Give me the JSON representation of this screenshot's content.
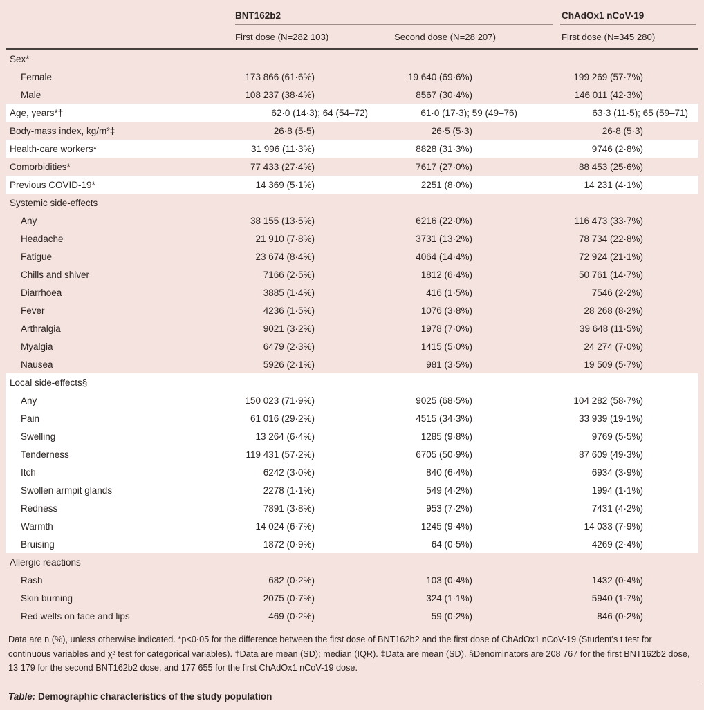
{
  "colors": {
    "page_background": "#f5e3df",
    "row_highlight": "#ffffff",
    "text": "#2b2422",
    "group_rule": "#9a8c84",
    "header_rule": "#45403c"
  },
  "header": {
    "groups": [
      {
        "label": "BNT162b2"
      },
      {
        "label": "ChAdOx1 nCoV-19"
      }
    ],
    "columns": [
      "First dose (N=282 103)",
      "Second dose (N=28 207)",
      "First dose (N=345 280)"
    ]
  },
  "rows": [
    {
      "label": "Sex*",
      "indent": 0,
      "shade": "pink",
      "wide": false,
      "values": [
        "",
        "",
        ""
      ]
    },
    {
      "label": "Female",
      "indent": 1,
      "shade": "pink",
      "wide": false,
      "values": [
        "173 866 (61·6%)",
        "19 640 (69·6%)",
        "199 269 (57·7%)"
      ]
    },
    {
      "label": "Male",
      "indent": 1,
      "shade": "pink",
      "wide": false,
      "values": [
        "108 237 (38·4%)",
        "8567 (30·4%)",
        "146 011 (42·3%)"
      ]
    },
    {
      "label": "Age, years*†",
      "indent": 0,
      "shade": "white",
      "wide": true,
      "values": [
        "62·0 (14·3); 64 (54–72)",
        "61·0 (17·3); 59 (49–76)",
        "63·3 (11·5); 65 (59–71)"
      ]
    },
    {
      "label": "Body-mass index, kg/m²‡",
      "indent": 0,
      "shade": "pink",
      "wide": false,
      "values": [
        "26·8 (5·5)",
        "26·5 (5·3)",
        "26·8 (5·3)"
      ]
    },
    {
      "label": "Health-care workers*",
      "indent": 0,
      "shade": "white",
      "wide": false,
      "values": [
        "31 996 (11·3%)",
        "8828 (31·3%)",
        "9746 (2·8%)"
      ]
    },
    {
      "label": "Comorbidities*",
      "indent": 0,
      "shade": "pink",
      "wide": false,
      "values": [
        "77 433 (27·4%)",
        "7617 (27·0%)",
        "88 453 (25·6%)"
      ]
    },
    {
      "label": "Previous COVID-19*",
      "indent": 0,
      "shade": "white",
      "wide": false,
      "values": [
        "14 369 (5·1%)",
        "2251 (8·0%)",
        "14 231 (4·1%)"
      ]
    },
    {
      "label": "Systemic side-effects",
      "indent": 0,
      "shade": "pink",
      "wide": false,
      "values": [
        "",
        "",
        ""
      ]
    },
    {
      "label": "Any",
      "indent": 1,
      "shade": "pink",
      "wide": false,
      "values": [
        "38 155 (13·5%)",
        "6216 (22·0%)",
        "116 473 (33·7%)"
      ]
    },
    {
      "label": "Headache",
      "indent": 1,
      "shade": "pink",
      "wide": false,
      "values": [
        "21 910 (7·8%)",
        "3731 (13·2%)",
        "78 734 (22·8%)"
      ]
    },
    {
      "label": "Fatigue",
      "indent": 1,
      "shade": "pink",
      "wide": false,
      "values": [
        "23 674 (8·4%)",
        "4064 (14·4%)",
        "72 924 (21·1%)"
      ]
    },
    {
      "label": "Chills and shiver",
      "indent": 1,
      "shade": "pink",
      "wide": false,
      "values": [
        "7166 (2·5%)",
        "1812 (6·4%)",
        "50 761 (14·7%)"
      ]
    },
    {
      "label": "Diarrhoea",
      "indent": 1,
      "shade": "pink",
      "wide": false,
      "values": [
        "3885 (1·4%)",
        "416 (1·5%)",
        "7546 (2·2%)"
      ]
    },
    {
      "label": "Fever",
      "indent": 1,
      "shade": "pink",
      "wide": false,
      "values": [
        "4236 (1·5%)",
        "1076 (3·8%)",
        "28 268 (8·2%)"
      ]
    },
    {
      "label": "Arthralgia",
      "indent": 1,
      "shade": "pink",
      "wide": false,
      "values": [
        "9021 (3·2%)",
        "1978 (7·0%)",
        "39 648 (11·5%)"
      ]
    },
    {
      "label": "Myalgia",
      "indent": 1,
      "shade": "pink",
      "wide": false,
      "values": [
        "6479 (2·3%)",
        "1415 (5·0%)",
        "24 274 (7·0%)"
      ]
    },
    {
      "label": "Nausea",
      "indent": 1,
      "shade": "pink",
      "wide": false,
      "values": [
        "5926 (2·1%)",
        "981 (3·5%)",
        "19 509 (5·7%)"
      ]
    },
    {
      "label": "Local side-effects§",
      "indent": 0,
      "shade": "white",
      "wide": false,
      "values": [
        "",
        "",
        ""
      ]
    },
    {
      "label": "Any",
      "indent": 1,
      "shade": "white",
      "wide": false,
      "values": [
        "150 023 (71·9%)",
        "9025 (68·5%)",
        "104 282 (58·7%)"
      ]
    },
    {
      "label": "Pain",
      "indent": 1,
      "shade": "white",
      "wide": false,
      "values": [
        "61 016 (29·2%)",
        "4515 (34·3%)",
        "33 939 (19·1%)"
      ]
    },
    {
      "label": "Swelling",
      "indent": 1,
      "shade": "white",
      "wide": false,
      "values": [
        "13 264 (6·4%)",
        "1285 (9·8%)",
        "9769 (5·5%)"
      ]
    },
    {
      "label": "Tenderness",
      "indent": 1,
      "shade": "white",
      "wide": false,
      "values": [
        "119 431 (57·2%)",
        "6705 (50·9%)",
        "87 609 (49·3%)"
      ]
    },
    {
      "label": "Itch",
      "indent": 1,
      "shade": "white",
      "wide": false,
      "values": [
        "6242 (3·0%)",
        "840 (6·4%)",
        "6934 (3·9%)"
      ]
    },
    {
      "label": "Swollen armpit glands",
      "indent": 1,
      "shade": "white",
      "wide": false,
      "values": [
        "2278 (1·1%)",
        "549 (4·2%)",
        "1994 (1·1%)"
      ]
    },
    {
      "label": "Redness",
      "indent": 1,
      "shade": "white",
      "wide": false,
      "values": [
        "7891 (3·8%)",
        "953 (7·2%)",
        "7431 (4·2%)"
      ]
    },
    {
      "label": "Warmth",
      "indent": 1,
      "shade": "white",
      "wide": false,
      "values": [
        "14 024 (6·7%)",
        "1245 (9·4%)",
        "14 033 (7·9%)"
      ]
    },
    {
      "label": "Bruising",
      "indent": 1,
      "shade": "white",
      "wide": false,
      "values": [
        "1872 (0·9%)",
        "64 (0·5%)",
        "4269 (2·4%)"
      ]
    },
    {
      "label": "Allergic reactions",
      "indent": 0,
      "shade": "pink",
      "wide": false,
      "values": [
        "",
        "",
        ""
      ]
    },
    {
      "label": "Rash",
      "indent": 1,
      "shade": "pink",
      "wide": false,
      "values": [
        "682 (0·2%)",
        "103 (0·4%)",
        "1432 (0·4%)"
      ]
    },
    {
      "label": "Skin burning",
      "indent": 1,
      "shade": "pink",
      "wide": false,
      "values": [
        "2075 (0·7%)",
        "324 (1·1%)",
        "5940 (1·7%)"
      ]
    },
    {
      "label": "Red welts on face and lips",
      "indent": 1,
      "shade": "pink",
      "wide": false,
      "values": [
        "469 (0·2%)",
        "59 (0·2%)",
        "846 (0·2%)"
      ]
    }
  ],
  "footnote": "Data are n (%), unless otherwise indicated. *p<0·05 for the difference between the first dose of BNT162b2 and the first dose of ChAdOx1 nCoV-19 (Student's t test for continuous variables and χ² test for categorical variables). †Data are mean (SD); median (IQR). ‡Data are mean (SD). §Denominators are 208 767 for the first BNT162b2 dose, 13 179 for the second BNT162b2 dose, and 177 655 for the first ChAdOx1 nCoV-19 dose.",
  "caption": {
    "prefix": "Table:",
    "text": " Demographic characteristics of the study population"
  }
}
